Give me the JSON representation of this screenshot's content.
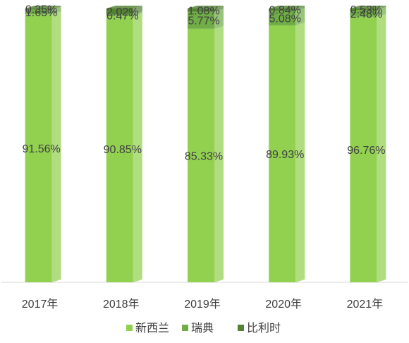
{
  "chart_data": {
    "type": "bar",
    "stacked": true,
    "percent_stacked": true,
    "three_d": true,
    "categories": [
      "2017年",
      "2018年",
      "2019年",
      "2020年",
      "2021年"
    ],
    "series": [
      {
        "name": "新西兰",
        "color": "#92d050",
        "values": [
          91.56,
          90.85,
          85.33,
          89.93,
          96.76
        ],
        "labels": [
          "91.56%",
          "90.85%",
          "85.33%",
          "89.93%",
          "96.76%"
        ]
      },
      {
        "name": "瑞典",
        "color": "#70ad47",
        "values": [
          1.65,
          0.47,
          5.77,
          5.08,
          2.48
        ],
        "labels": [
          "1.65%",
          "0.47%",
          "5.77%",
          "5.08%",
          "2.48%"
        ]
      },
      {
        "name": "比利时",
        "color": "#548235",
        "values": [
          0.35,
          2.02,
          1.08,
          0.84,
          0.53
        ],
        "labels": [
          "0.35%",
          "2.02%",
          "1.08%",
          "0.84%",
          "0.53%"
        ]
      }
    ],
    "legend_position": "bottom",
    "grid": false
  }
}
